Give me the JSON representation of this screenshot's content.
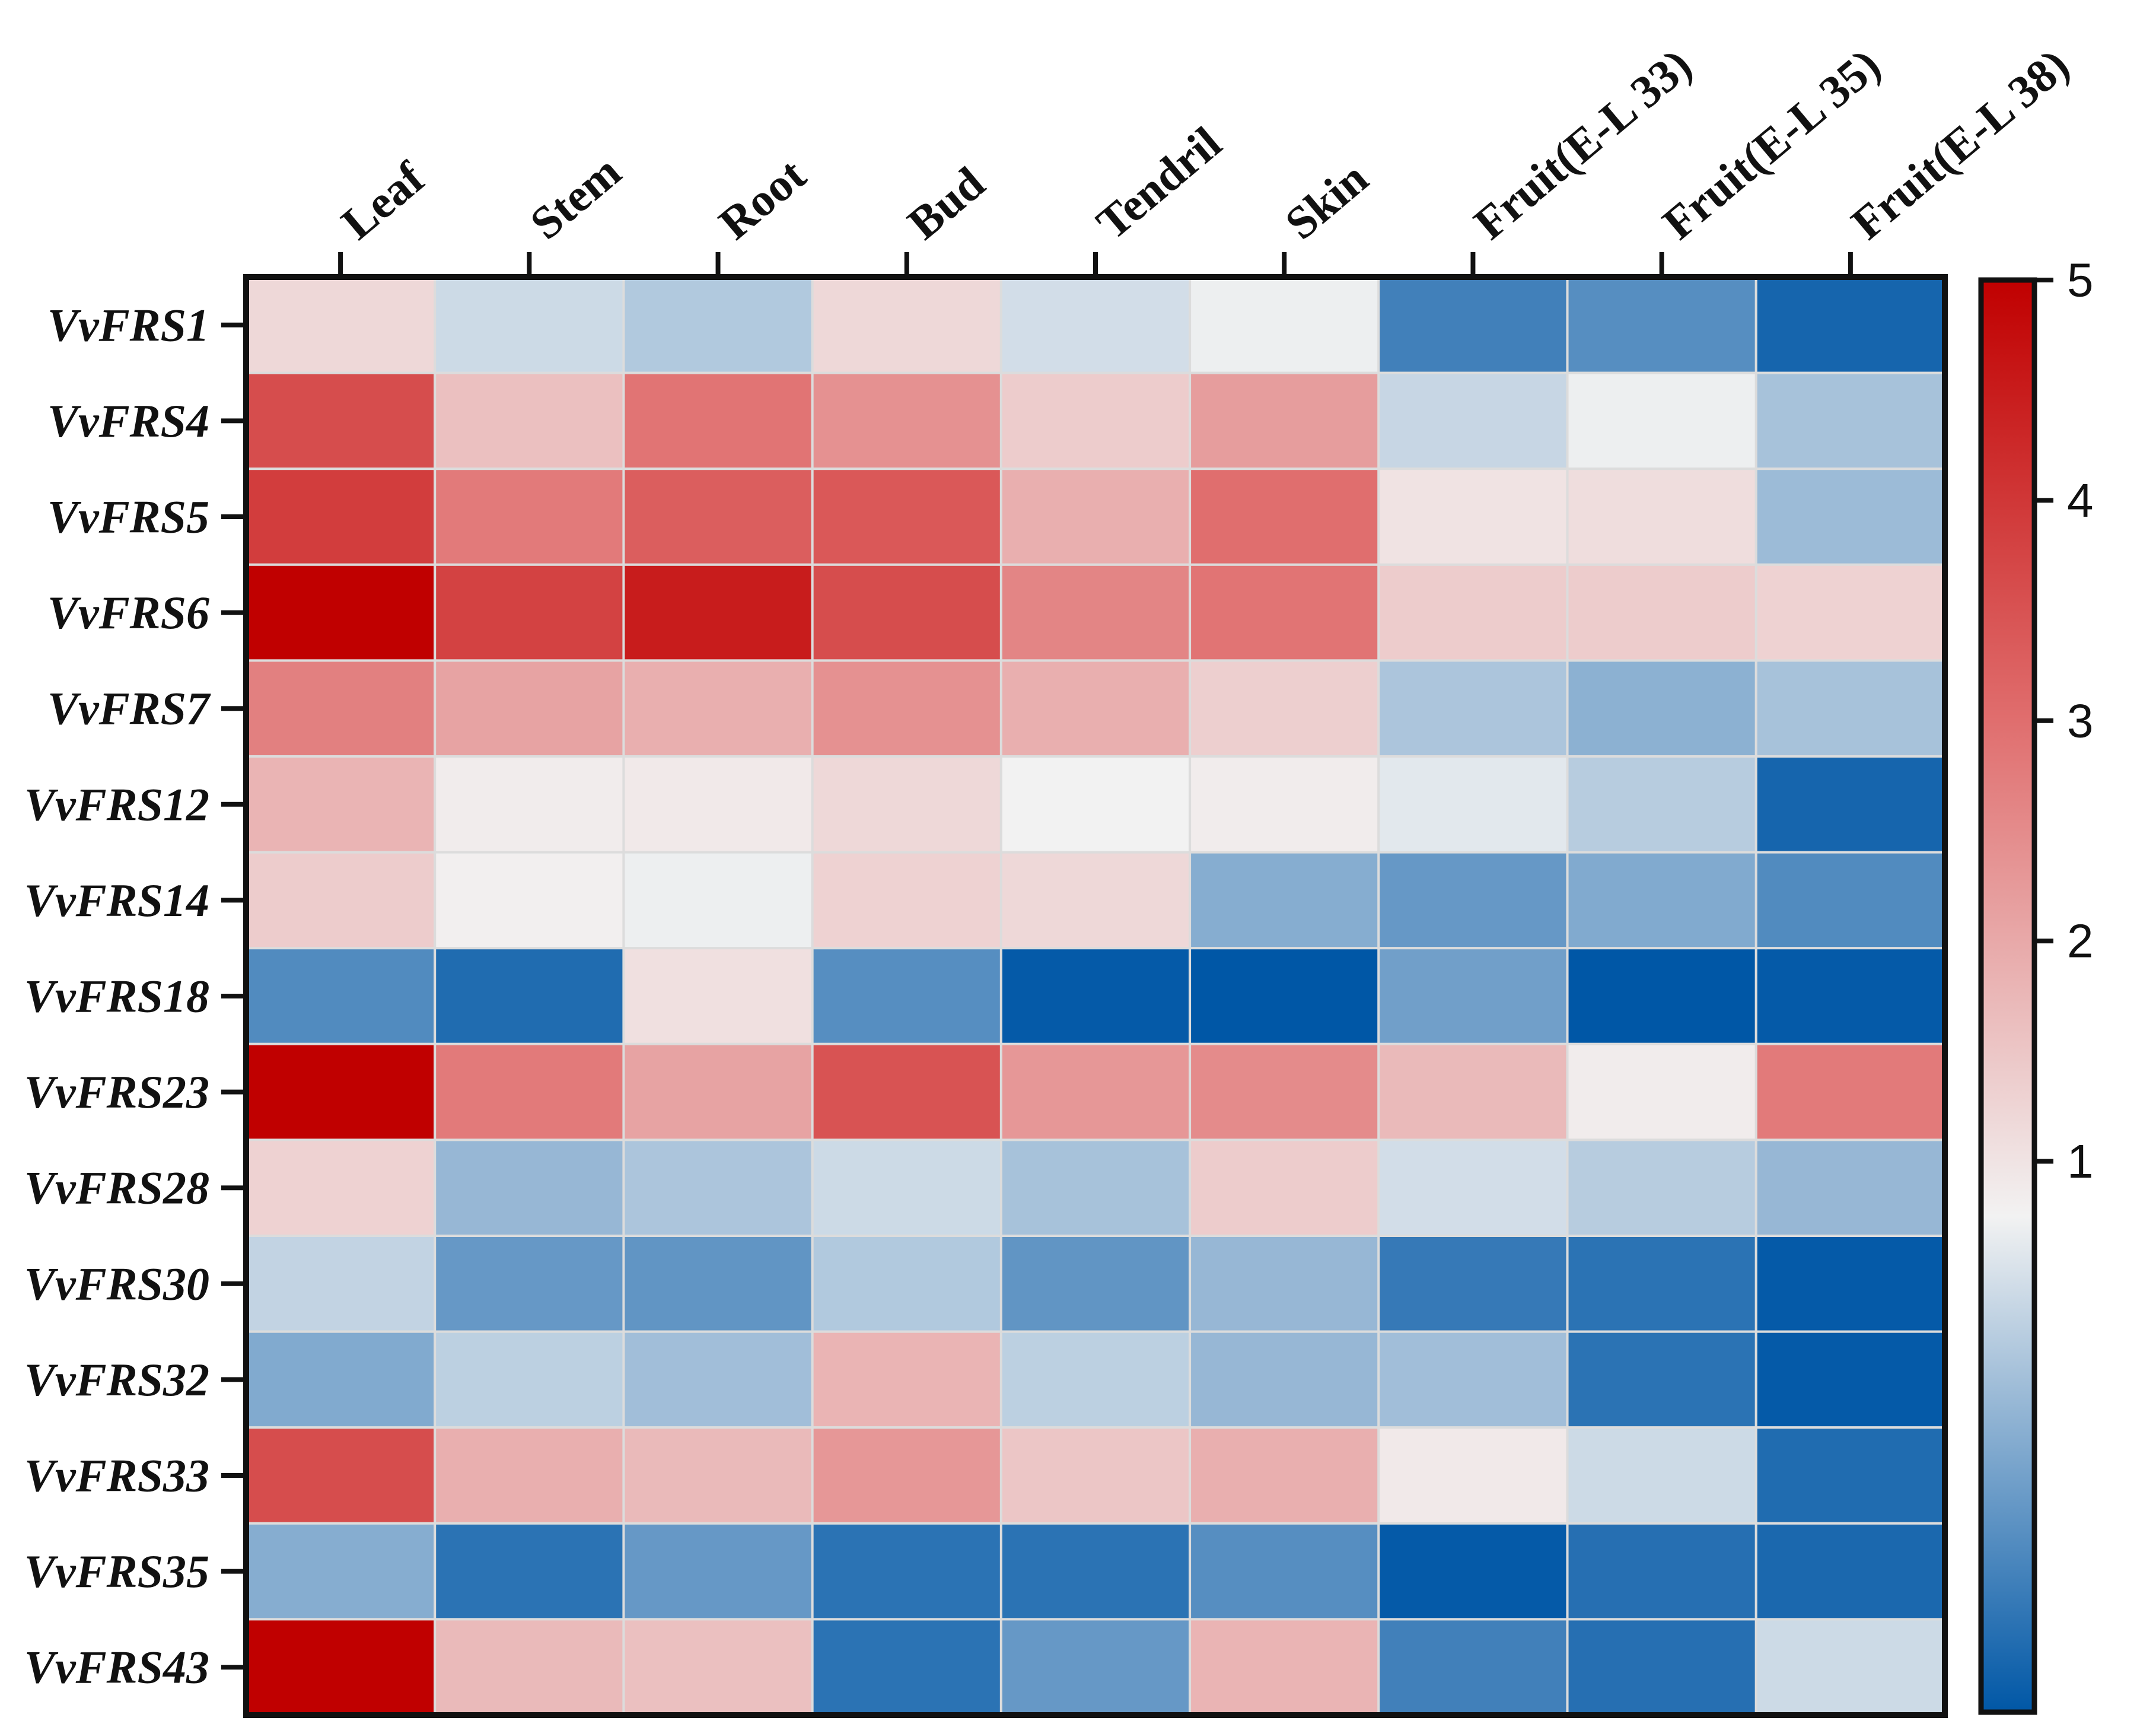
{
  "chart_data": {
    "type": "heatmap",
    "rows": [
      "VvFRS1",
      "VvFRS4",
      "VvFRS5",
      "VvFRS6",
      "VvFRS7",
      "VvFRS12",
      "VvFRS14",
      "VvFRS18",
      "VvFRS23",
      "VvFRS28",
      "VvFRS30",
      "VvFRS32",
      "VvFRS33",
      "VvFRS35",
      "VvFRS43"
    ],
    "columns": [
      "Leaf",
      "Stem",
      "Root",
      "Bud",
      "Tendril",
      "Skin",
      "Fruit(E-L 33)",
      "Fruit(E-L 35)",
      "Fruit(E-L 38)"
    ],
    "values": [
      [
        1.2,
        0.4,
        0.15,
        1.2,
        0.45,
        0.7,
        -0.9,
        -0.7,
        -1.3
      ],
      [
        3.6,
        1.6,
        2.9,
        2.4,
        1.4,
        2.2,
        0.35,
        0.7,
        0.05
      ],
      [
        3.9,
        2.8,
        3.3,
        3.4,
        1.9,
        3.0,
        1.0,
        1.1,
        -0.05
      ],
      [
        5.0,
        3.8,
        4.5,
        3.6,
        2.6,
        2.9,
        1.4,
        1.4,
        1.3
      ],
      [
        2.7,
        2.1,
        1.9,
        2.4,
        1.9,
        1.35,
        0.1,
        -0.2,
        0.05
      ],
      [
        1.8,
        0.85,
        0.9,
        1.2,
        0.75,
        0.85,
        0.6,
        0.2,
        -1.3
      ],
      [
        1.4,
        0.8,
        0.7,
        1.3,
        1.2,
        -0.25,
        -0.55,
        -0.3,
        -0.75
      ],
      [
        -0.75,
        -1.2,
        1.05,
        -0.7,
        -1.45,
        -1.5,
        -0.45,
        -1.5,
        -1.45
      ],
      [
        5.0,
        2.8,
        2.1,
        3.5,
        2.3,
        2.5,
        1.7,
        0.85,
        2.8
      ],
      [
        1.3,
        -0.1,
        0.1,
        0.4,
        0.05,
        1.4,
        0.45,
        0.2,
        -0.1
      ],
      [
        0.3,
        -0.55,
        -0.6,
        0.15,
        -0.6,
        -0.1,
        -1.0,
        -1.1,
        -1.45
      ],
      [
        -0.3,
        0.25,
        0.0,
        1.8,
        0.25,
        -0.1,
        0.0,
        -1.1,
        -1.45
      ],
      [
        3.6,
        1.9,
        1.7,
        2.3,
        1.5,
        1.9,
        0.9,
        0.4,
        -1.2
      ],
      [
        -0.25,
        -1.1,
        -0.55,
        -1.1,
        -1.1,
        -0.7,
        -1.45,
        -1.15,
        -1.25
      ],
      [
        5.0,
        1.7,
        1.6,
        -1.1,
        -0.55,
        1.8,
        -0.9,
        -1.15,
        0.4
      ]
    ],
    "color_scale": {
      "min": -1.5,
      "max": 5,
      "ticks": [
        "1",
        "2",
        "3",
        "4",
        "5"
      ],
      "tick_values": [
        1,
        2,
        3,
        4,
        5
      ],
      "stops": [
        {
          "value": -1.5,
          "color": "#0057a6"
        },
        {
          "value": 0.75,
          "color": "#f2f2f2"
        },
        {
          "value": 3.0,
          "color": "#e06e6e"
        },
        {
          "value": 5.0,
          "color": "#c00000"
        }
      ]
    },
    "legend_position": "right"
  }
}
